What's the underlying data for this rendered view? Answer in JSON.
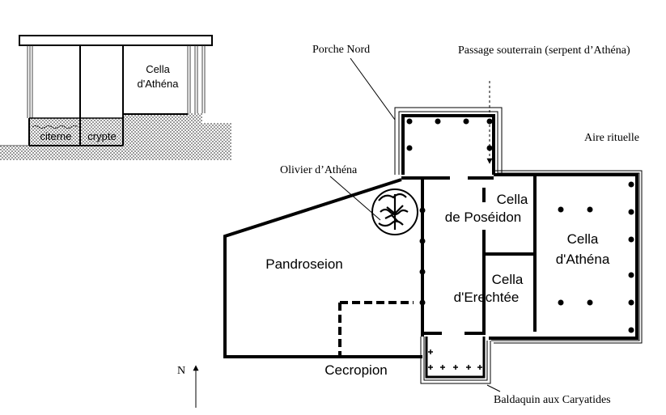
{
  "section": {
    "cella_line1": "Cella",
    "cella_line2": "d'Athéna",
    "citerne": "citerne",
    "crypte": "crypte"
  },
  "plan": {
    "porche_nord": "Porche Nord",
    "passage_souterrain": "Passage souterrain (serpent d’Athéna)",
    "aire_rituelle": "Aire rituelle",
    "olivier": "Olivier d’Athéna",
    "cella_poseidon_line1": "Cella",
    "cella_poseidon_line2": "de Poséidon",
    "cella_athena_line1": "Cella",
    "cella_athena_line2": "d'Athéna",
    "cella_erechtee_line1": "Cella",
    "cella_erechtee_line2": "d'Erechtée",
    "pandroseion": "Pandroseion",
    "cecropion": "Cecropion",
    "baldaquin": "Baldaquin aux Caryatides",
    "north": "N"
  }
}
